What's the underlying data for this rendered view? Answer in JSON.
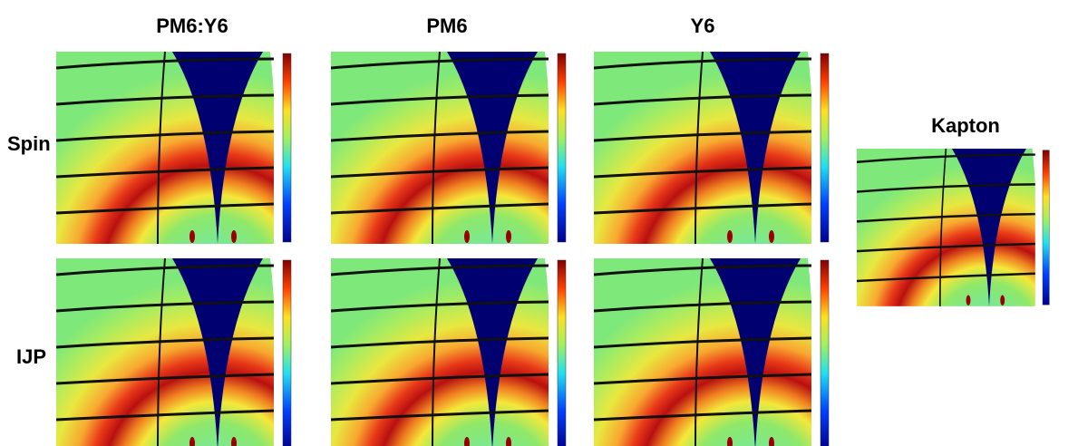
{
  "columns": [
    "PM6:Y6",
    "PM6",
    "Y6"
  ],
  "rows": [
    "Spin",
    "IJP"
  ],
  "side_panel": {
    "title": "Kapton"
  }
}
